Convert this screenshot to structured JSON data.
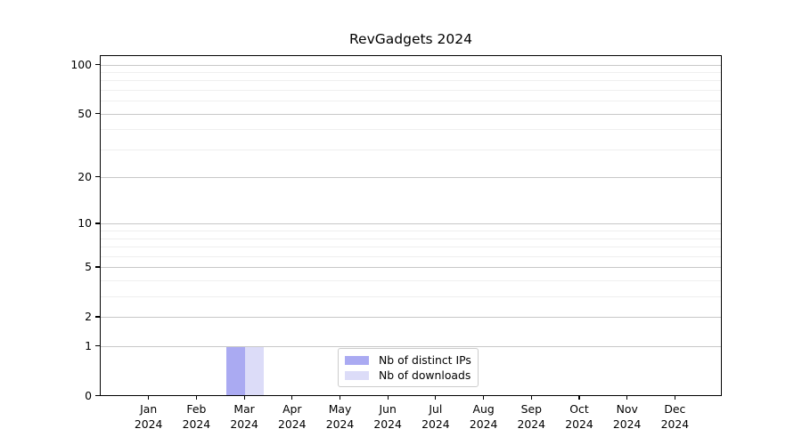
{
  "title": "RevGadgets 2024",
  "chart_data": {
    "type": "bar",
    "title": "RevGadgets 2024",
    "categories": [
      "Jan 2024",
      "Feb 2024",
      "Mar 2024",
      "Apr 2024",
      "May 2024",
      "Jun 2024",
      "Jul 2024",
      "Aug 2024",
      "Sep 2024",
      "Oct 2024",
      "Nov 2024",
      "Dec 2024"
    ],
    "series": [
      {
        "name": "Nb of distinct IPs",
        "color": "#aaaaf2",
        "values": [
          0,
          0,
          1,
          0,
          0,
          0,
          0,
          0,
          0,
          0,
          0,
          0
        ]
      },
      {
        "name": "Nb of downloads",
        "color": "#dcdcf8",
        "values": [
          0,
          0,
          1,
          0,
          0,
          0,
          0,
          0,
          0,
          0,
          0,
          0
        ]
      }
    ],
    "xlabel": "",
    "ylabel": "",
    "yscale": "log1p",
    "ylim": [
      0,
      100
    ],
    "y_major_ticks": [
      0,
      1,
      2,
      5,
      10,
      20,
      50,
      100
    ],
    "y_minor_ticks": [
      3,
      4,
      6,
      7,
      8,
      9,
      30,
      40,
      60,
      70,
      80,
      90
    ],
    "grid": true,
    "legend_position": "lower center"
  },
  "colors": {
    "bar_distinct_ips": "#aaaaf2",
    "bar_downloads": "#dcdcf8",
    "grid_major": "#c8c8c8",
    "grid_minor": "#efefef",
    "axis": "#000000",
    "background": "#ffffff",
    "legend_border": "#cccccc"
  }
}
